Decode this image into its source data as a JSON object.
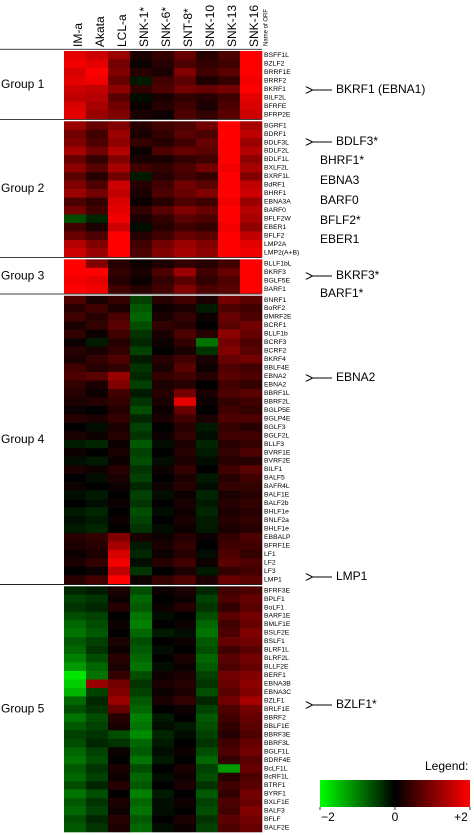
{
  "chart_data": {
    "type": "heatmap",
    "columns": [
      "IM-a",
      "Akata",
      "LCL-a",
      "SNK-1*",
      "SNK-6*",
      "SNT-8*",
      "SNK-10",
      "SNK-13",
      "SNK-16"
    ],
    "row_label_title": "Name of ORF",
    "zlim": [
      -2,
      2
    ],
    "colorscale": [
      "#00ff00",
      "#000000",
      "#ff0000"
    ],
    "legend_title": "Legend:",
    "zticks": [
      {
        "value": -2,
        "label": "−2"
      },
      0,
      {
        "value": 2,
        "label": "+2"
      }
    ],
    "groups": [
      {
        "name": "Group 1",
        "rows": [
          "BSFF1L",
          "BZLF2",
          "BRRF1E",
          "BRRF2",
          "BKRF1",
          "BILF2L",
          "BFRFE",
          "BFRP2E"
        ],
        "values": [
          [
            1.8,
            1.6,
            1.2,
            0.2,
            0.4,
            0.8,
            0.3,
            0.6,
            2
          ],
          [
            1.9,
            1.8,
            0.9,
            0.1,
            0.3,
            0.6,
            0.4,
            0.5,
            2
          ],
          [
            1.7,
            2,
            1.0,
            0.3,
            0.2,
            1.0,
            0.5,
            0.7,
            2
          ],
          [
            1.8,
            1.9,
            0.8,
            -0.2,
            0.5,
            0.7,
            0.2,
            0.4,
            1.9
          ],
          [
            1.6,
            1.5,
            1.1,
            0.4,
            0.6,
            0.9,
            0.8,
            0.9,
            2
          ],
          [
            1.5,
            1.4,
            0.7,
            -0.1,
            0.2,
            0.4,
            0.3,
            0.5,
            1.8
          ],
          [
            1.7,
            1.3,
            0.9,
            0.1,
            0.3,
            0.5,
            0.2,
            0.6,
            1.7
          ],
          [
            1.8,
            1.2,
            1.0,
            0.2,
            0.1,
            0.6,
            0.4,
            0.7,
            1.6
          ]
        ]
      },
      {
        "name": "Group 2",
        "rows": [
          "BGRF1",
          "BDRF1",
          "BDLF3L",
          "BDLF2L",
          "BDLF1L",
          "BXLF2L",
          "BXRF1L",
          "BdRF1",
          "BHRF1",
          "EBNA3A",
          "BARF0",
          "BFLF2W",
          "EBER1",
          "BFLF2",
          "LMP2A",
          "LMP2(A+B)"
        ],
        "values": [
          [
            1.2,
            0.8,
            1.0,
            0.3,
            0.5,
            0.6,
            0.9,
            2,
            1.3
          ],
          [
            0.9,
            0.5,
            1.2,
            0.2,
            0.4,
            0.7,
            0.6,
            2,
            1.5
          ],
          [
            1.0,
            0.6,
            1.1,
            0.4,
            0.3,
            0.5,
            0.8,
            2,
            1.2
          ],
          [
            1.3,
            0.9,
            1.4,
            0.1,
            0.6,
            0.8,
            0.7,
            2,
            1.4
          ],
          [
            0.8,
            0.4,
            1.0,
            0.2,
            0.2,
            0.4,
            0.5,
            2,
            1.1
          ],
          [
            1.1,
            0.7,
            1.3,
            0.5,
            0.4,
            0.6,
            0.9,
            1.9,
            1.3
          ],
          [
            0.7,
            0.3,
            0.9,
            -0.2,
            0.3,
            0.5,
            0.4,
            2,
            1.0
          ],
          [
            1.0,
            0.6,
            1.6,
            0.3,
            0.5,
            0.9,
            0.7,
            2,
            1.5
          ],
          [
            1.2,
            0.9,
            1.5,
            0.2,
            0.6,
            0.8,
            1.0,
            2,
            1.6
          ],
          [
            0.6,
            0.4,
            1.7,
            0.1,
            0.3,
            0.6,
            0.5,
            1.9,
            1.2
          ],
          [
            0.9,
            0.5,
            1.8,
            0.4,
            0.7,
            1.0,
            0.8,
            2,
            1.4
          ],
          [
            -0.6,
            -0.3,
            1.9,
            0.2,
            0.4,
            0.7,
            0.6,
            2,
            1.3
          ],
          [
            0.5,
            0.2,
            1.6,
            -0.1,
            0.3,
            0.5,
            0.4,
            1.9,
            1.1
          ],
          [
            0.8,
            0.6,
            2.0,
            0.3,
            0.5,
            0.8,
            0.7,
            2,
            1.5
          ],
          [
            1.4,
            1.0,
            2.0,
            0.5,
            0.9,
            1.2,
            1.0,
            2,
            1.8
          ],
          [
            1.6,
            1.2,
            2.0,
            0.6,
            1.0,
            1.3,
            1.1,
            2,
            1.9
          ]
        ]
      },
      {
        "name": "Group 3",
        "rows": [
          "BLLF1bL",
          "BKRF3",
          "BGLF5E",
          "BARF1"
        ],
        "values": [
          [
            2,
            1.0,
            0.3,
            0.1,
            0.2,
            0.4,
            0.3,
            0.5,
            2
          ],
          [
            2,
            2,
            0.4,
            0.2,
            0.6,
            1.2,
            0.5,
            0.8,
            2
          ],
          [
            1.9,
            1.8,
            0.3,
            0.1,
            0.4,
            0.7,
            0.4,
            0.6,
            2
          ],
          [
            2,
            1.9,
            0.5,
            0.3,
            0.5,
            1.0,
            0.6,
            0.7,
            2
          ]
        ]
      },
      {
        "name": "Group 4",
        "rows": [
          "BNRF1",
          "BoRF2",
          "BMRF2E",
          "BCRF1",
          "BLLF1b",
          "BCRF3",
          "BCRF2",
          "BKRF4",
          "BBLF4E",
          "EBNA2",
          "EBNA2",
          "BBRF1L",
          "BBRF2L",
          "BGLP5E",
          "BGLP4E",
          "BGLF3",
          "BGLF2L",
          "BLLF3",
          "BVRF1E",
          "BVRF2E",
          "BILF1",
          "BALF5",
          "BAFR4L",
          "BALF1E",
          "BALF2b",
          "BHLF1e",
          "BNLF2a",
          "BHLF1e",
          "EBBALP",
          "BFRF1E",
          "LF1",
          "LF2",
          "LF3",
          "LMP1"
        ],
        "values": [
          [
            0.6,
            0.2,
            0.4,
            -0.5,
            0.3,
            0.5,
            0.2,
            0.9,
            0.7
          ],
          [
            0.3,
            0.5,
            0.2,
            -0.7,
            0.1,
            0.2,
            -0.2,
            0.6,
            0.5
          ],
          [
            0.5,
            0.3,
            0.6,
            -0.8,
            0.2,
            0.4,
            0.1,
            0.8,
            0.6
          ],
          [
            0.2,
            0.4,
            0.7,
            -0.6,
            0.4,
            0.3,
            0,
            0.7,
            0.9
          ],
          [
            0.4,
            0.1,
            0.5,
            -0.4,
            0.2,
            0.6,
            0.3,
            1.1,
            0.8
          ],
          [
            0.1,
            -0.2,
            0.3,
            -0.3,
            0.1,
            0.4,
            -0.9,
            0.9,
            0.6
          ],
          [
            0.3,
            0.2,
            0.4,
            -0.5,
            0,
            0.2,
            -0.4,
            1.0,
            0.7
          ],
          [
            0.2,
            0.4,
            0.6,
            -0.2,
            0.3,
            0.5,
            0.2,
            0.8,
            0.9
          ],
          [
            0.5,
            0.3,
            0.4,
            -0.4,
            0.2,
            0.7,
            0.1,
            0.6,
            0.5
          ],
          [
            0.6,
            0.7,
            1.2,
            -0.3,
            0.4,
            0.5,
            0.3,
            0.7,
            0.6
          ],
          [
            0.4,
            0.2,
            1.0,
            -0.5,
            0.2,
            0.3,
            0,
            0.5,
            0.4
          ],
          [
            0.3,
            0.1,
            0.5,
            -0.2,
            0.3,
            0.9,
            0.2,
            0.6,
            0.7
          ],
          [
            0.2,
            0.3,
            0.4,
            -0.4,
            0.2,
            1.8,
            0.1,
            0.4,
            0.5
          ],
          [
            0.1,
            0,
            0.3,
            -0.6,
            0.1,
            0.8,
            0,
            0.5,
            0.4
          ],
          [
            0.3,
            0.2,
            0.4,
            -0.3,
            0.2,
            0.5,
            0.2,
            0.6,
            0.6
          ],
          [
            0,
            -0.1,
            0.2,
            -0.5,
            0,
            0.3,
            -0.2,
            0.4,
            0.3
          ],
          [
            0.2,
            0.1,
            0.3,
            -0.4,
            0.1,
            0.4,
            -0.1,
            0.5,
            0.5
          ],
          [
            -0.2,
            -0.3,
            0.1,
            -0.7,
            -0.1,
            0.2,
            -0.3,
            0.3,
            0.4
          ],
          [
            0.1,
            0,
            0.2,
            -0.5,
            0,
            0.3,
            -0.2,
            0.4,
            0.6
          ],
          [
            -0.1,
            -0.2,
            0.1,
            -0.6,
            -0.1,
            0.2,
            -0.1,
            0.3,
            0.3
          ],
          [
            0.2,
            0.1,
            0.3,
            -0.4,
            0.1,
            0.4,
            0,
            0.5,
            0.7
          ],
          [
            0,
            -0.1,
            0.2,
            -0.5,
            0,
            0.2,
            -0.2,
            0.3,
            0.5
          ],
          [
            0.1,
            0,
            0.1,
            -0.3,
            0.1,
            0.3,
            -0.1,
            0.4,
            0.4
          ],
          [
            -0.1,
            -0.2,
            0,
            -0.5,
            -0.1,
            0.1,
            -0.3,
            0.2,
            0.3
          ],
          [
            0,
            -0.1,
            0.1,
            -0.4,
            0,
            0.2,
            -0.2,
            0.3,
            0.4
          ],
          [
            -0.2,
            -0.3,
            0,
            -0.6,
            -0.1,
            0.1,
            -0.3,
            0.2,
            0.3
          ],
          [
            -0.1,
            -0.2,
            0.1,
            -0.5,
            0,
            0.2,
            -0.2,
            0.3,
            0.4
          ],
          [
            -0.2,
            -0.3,
            0,
            -0.4,
            -0.1,
            0.1,
            -0.2,
            0.2,
            0.3
          ],
          [
            0.3,
            0.4,
            1.0,
            0.2,
            0.1,
            0.3,
            0.1,
            0.4,
            0.6
          ],
          [
            0.2,
            0.3,
            1.3,
            -0.2,
            0.2,
            0.4,
            0,
            0.5,
            0.5
          ],
          [
            0.1,
            0.2,
            1.7,
            -0.3,
            0.1,
            0.3,
            -0.1,
            0.6,
            0.4
          ],
          [
            0.2,
            0.4,
            1.9,
            -0.1,
            0.3,
            0.5,
            0.1,
            0.7,
            0.6
          ],
          [
            0,
            0.1,
            1.5,
            -0.4,
            0,
            0.2,
            -0.2,
            0.4,
            0.5
          ],
          [
            0.3,
            0.5,
            2.0,
            0.1,
            0.4,
            0.6,
            0.2,
            0.8,
            0.7
          ]
        ]
      },
      {
        "name": "Group 5",
        "rows": [
          "BFRF3E",
          "BPLF1",
          "BoLF1",
          "BARF1E",
          "BMLF1E",
          "BSLF2E",
          "BSLF1",
          "BLRF1L",
          "BLRF2L",
          "BLLF2E",
          "BERF1",
          "EBNA3B",
          "EBNA3C",
          "BZLF1",
          "BRLF1E",
          "BBRF2",
          "BBLF1E",
          "BBRF3E",
          "BBRF3L",
          "BGLF1L",
          "BDRF4E",
          "BcLF1L",
          "BcRF1L",
          "BTRF1",
          "BYRF1",
          "BXLF1E",
          "BALF3",
          "BFLF",
          "BALF2E"
        ],
        "values": [
          [
            -0.3,
            -0.2,
            0.2,
            -0.6,
            0.1,
            0.2,
            -0.3,
            0.5,
            0.6
          ],
          [
            -0.5,
            -0.4,
            0.1,
            -0.8,
            0,
            0.1,
            -0.5,
            0.6,
            0.8
          ],
          [
            -0.4,
            -0.3,
            0.3,
            -0.7,
            0.1,
            0.3,
            -0.4,
            0.4,
            0.7
          ],
          [
            -0.6,
            -0.5,
            0,
            -0.9,
            -0.1,
            0,
            -0.6,
            0.7,
            0.9
          ],
          [
            -0.8,
            -0.6,
            0.1,
            -1.0,
            0,
            0.1,
            -0.8,
            0.5,
            0.8
          ],
          [
            -0.9,
            -0.7,
            0,
            -0.8,
            -0.2,
            -0.1,
            -0.9,
            0.6,
            1.0
          ],
          [
            -0.7,
            -0.5,
            0.2,
            -0.6,
            0,
            0.1,
            -0.7,
            0.8,
            0.9
          ],
          [
            -0.8,
            -0.4,
            0.1,
            -0.7,
            -0.1,
            0,
            -0.6,
            0.5,
            0.7
          ],
          [
            -1.0,
            -0.6,
            0.3,
            -0.8,
            0,
            0.2,
            -0.8,
            0.7,
            0.9
          ],
          [
            -1.2,
            -0.8,
            0.2,
            -0.9,
            -0.1,
            0.1,
            -0.7,
            0.6,
            0.8
          ],
          [
            -1.8,
            -0.9,
            0.4,
            -0.6,
            0.1,
            0.2,
            -0.5,
            0.9,
            1.0
          ],
          [
            -1.6,
            1.2,
            0.9,
            -0.4,
            0.2,
            0.3,
            -0.4,
            0.8,
            1.1
          ],
          [
            -1.4,
            -0.5,
            1.0,
            -0.5,
            0.1,
            0.2,
            -0.6,
            0.7,
            1.0
          ],
          [
            -0.8,
            -0.3,
            1.2,
            -0.7,
            0.2,
            0.4,
            -0.3,
            0.9,
            1.3
          ],
          [
            -0.6,
            -0.4,
            0.8,
            -0.8,
            0,
            0.1,
            -0.5,
            0.6,
            0.9
          ],
          [
            -0.9,
            -0.6,
            0.3,
            -1.0,
            -0.2,
            0,
            -0.7,
            0.5,
            0.8
          ],
          [
            -0.7,
            -0.5,
            0.2,
            -0.9,
            -0.1,
            -0.2,
            -0.6,
            0.4,
            0.7
          ],
          [
            -0.5,
            -0.4,
            -0.6,
            -1.1,
            -0.3,
            -0.1,
            -0.5,
            0.3,
            0.6
          ],
          [
            -0.6,
            -0.3,
            -0.4,
            -0.8,
            -0.2,
            0,
            -0.4,
            0.5,
            0.8
          ],
          [
            -0.8,
            -0.5,
            0.1,
            -0.7,
            -0.1,
            0.1,
            -0.6,
            0.6,
            0.9
          ],
          [
            -0.9,
            -0.6,
            0,
            -0.9,
            -0.2,
            0,
            -0.8,
            0.4,
            0.7
          ],
          [
            -0.7,
            -0.4,
            0.2,
            -0.6,
            0,
            0.2,
            -0.5,
            -1.2,
            0.8
          ],
          [
            -0.8,
            -0.5,
            0.1,
            -0.8,
            -0.1,
            0.1,
            -0.6,
            0.3,
            0.6
          ],
          [
            -0.6,
            -0.3,
            0.3,
            -0.7,
            0,
            0.2,
            -0.4,
            0.5,
            0.7
          ],
          [
            -0.9,
            -0.6,
            0,
            -1.0,
            -0.2,
            0,
            -0.7,
            0.4,
            0.9
          ],
          [
            -0.7,
            -0.4,
            0.2,
            -0.8,
            -0.1,
            0.1,
            -0.5,
            0.6,
            0.8
          ],
          [
            -0.8,
            -0.5,
            0.1,
            -0.9,
            -0.1,
            0,
            -0.6,
            0.5,
            1.0
          ],
          [
            -0.6,
            -0.3,
            0.3,
            -0.7,
            0,
            0.2,
            -0.4,
            0.7,
            0.9
          ],
          [
            -0.7,
            -0.4,
            0.2,
            -0.8,
            -0.1,
            0.1,
            -0.5,
            0.6,
            0.8
          ]
        ]
      }
    ],
    "annotations": [
      {
        "text": "BKRF1 (EBNA1)",
        "arrow": true
      },
      {
        "text": "BDLF3*",
        "arrow": true
      },
      {
        "text": "BHRF1*",
        "arrow": false
      },
      {
        "text": "EBNA3",
        "arrow": false
      },
      {
        "text": "BARF0",
        "arrow": false
      },
      {
        "text": "BFLF2*",
        "arrow": false
      },
      {
        "text": "EBER1",
        "arrow": false
      },
      {
        "text": "BKRF3*",
        "arrow": true
      },
      {
        "text": "BARF1*",
        "arrow": false
      },
      {
        "text": "EBNA2",
        "arrow": true
      },
      {
        "text": "LMP1",
        "arrow": true
      },
      {
        "text": "BZLF1*",
        "arrow": true
      }
    ]
  }
}
